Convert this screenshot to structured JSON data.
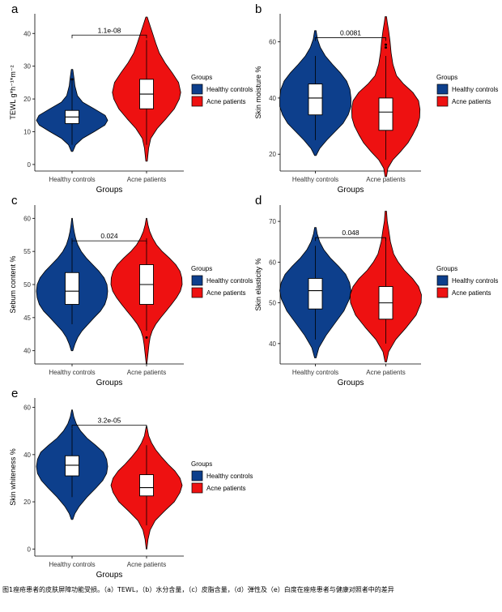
{
  "caption": "图1痤疮患者的皮肤屏障功能受损。（a）TEWL，（b）水分含量，（c）皮脂含量，（d）弹性及（e）白度在痤疮患者与健康对照者中的差异",
  "colors": {
    "healthy": "#0d3f8c",
    "acne": "#ee1111",
    "axis": "#000000"
  },
  "legend": {
    "title": "Groups",
    "items": [
      "Healthy controls",
      "Acne patients"
    ]
  },
  "chart_data": [
    {
      "type": "violin",
      "panel_letter": "a",
      "ylabel": "TEWL g*h⁻¹*m⁻²",
      "xlabel": "Groups",
      "categories": [
        "Healthy controls",
        "Acne patients"
      ],
      "ylim": [
        -2,
        46
      ],
      "yticks": [
        0,
        10,
        20,
        30,
        40
      ],
      "series": [
        {
          "name": "Healthy controls",
          "min": 4,
          "max": 29,
          "q1": 12.5,
          "median": 14.5,
          "q3": 16.5,
          "whisker_low": 6,
          "whisker_high": 26,
          "density": [
            [
              4,
              0.02
            ],
            [
              6,
              0.1
            ],
            [
              8,
              0.3
            ],
            [
              10,
              0.62
            ],
            [
              12,
              0.92
            ],
            [
              13.5,
              1.0
            ],
            [
              15,
              0.93
            ],
            [
              17,
              0.62
            ],
            [
              19,
              0.3
            ],
            [
              21,
              0.15
            ],
            [
              24,
              0.08
            ],
            [
              26,
              0.06
            ],
            [
              29,
              0.02
            ]
          ],
          "outliers": [
            26
          ]
        },
        {
          "name": "Acne patients",
          "min": 1,
          "max": 45,
          "q1": 17,
          "median": 21.5,
          "q3": 26,
          "whisker_low": 6,
          "whisker_high": 38,
          "density": [
            [
              1,
              0.02
            ],
            [
              5,
              0.06
            ],
            [
              8,
              0.12
            ],
            [
              11,
              0.3
            ],
            [
              14,
              0.55
            ],
            [
              17,
              0.78
            ],
            [
              20,
              0.92
            ],
            [
              22,
              0.96
            ],
            [
              25,
              0.9
            ],
            [
              28,
              0.72
            ],
            [
              31,
              0.52
            ],
            [
              34,
              0.36
            ],
            [
              37,
              0.26
            ],
            [
              40,
              0.17
            ],
            [
              43,
              0.08
            ],
            [
              45,
              0.02
            ]
          ],
          "outliers": []
        }
      ],
      "comparison": {
        "p_value": "1.1e-08",
        "y": 39.5
      }
    },
    {
      "type": "violin",
      "panel_letter": "b",
      "ylabel": "Skin moisture %",
      "xlabel": "Groups",
      "categories": [
        "Healthy controls",
        "Acne patients"
      ],
      "ylim": [
        14,
        70
      ],
      "yticks": [
        20,
        40,
        60
      ],
      "series": [
        {
          "name": "Healthy controls",
          "min": 19.5,
          "max": 64,
          "q1": 34,
          "median": 40,
          "q3": 45,
          "whisker_low": 25,
          "whisker_high": 55,
          "density": [
            [
              19.5,
              0.02
            ],
            [
              22,
              0.12
            ],
            [
              25,
              0.32
            ],
            [
              28,
              0.55
            ],
            [
              31,
              0.78
            ],
            [
              34,
              0.92
            ],
            [
              37,
              1.0
            ],
            [
              40,
              1.0
            ],
            [
              43,
              0.97
            ],
            [
              46,
              0.88
            ],
            [
              49,
              0.7
            ],
            [
              52,
              0.48
            ],
            [
              55,
              0.28
            ],
            [
              58,
              0.14
            ],
            [
              61,
              0.06
            ],
            [
              64,
              0.02
            ]
          ],
          "outliers": []
        },
        {
          "name": "Acne patients",
          "min": 12,
          "max": 69,
          "q1": 28.5,
          "median": 35,
          "q3": 40,
          "whisker_low": 18,
          "whisker_high": 55,
          "density": [
            [
              12,
              0.02
            ],
            [
              15,
              0.06
            ],
            [
              18,
              0.2
            ],
            [
              21,
              0.42
            ],
            [
              24,
              0.62
            ],
            [
              27,
              0.76
            ],
            [
              30,
              0.88
            ],
            [
              33,
              0.95
            ],
            [
              36,
              0.96
            ],
            [
              39,
              0.92
            ],
            [
              42,
              0.76
            ],
            [
              45,
              0.5
            ],
            [
              48,
              0.3
            ],
            [
              52,
              0.2
            ],
            [
              56,
              0.15
            ],
            [
              60,
              0.12
            ],
            [
              64,
              0.08
            ],
            [
              67,
              0.04
            ],
            [
              69,
              0.02
            ]
          ],
          "outliers": [
            58,
            59
          ]
        }
      ],
      "comparison": {
        "p_value": "0.0081",
        "y": 61.5
      }
    },
    {
      "type": "violin",
      "panel_letter": "c",
      "ylabel": "Sebum content %",
      "xlabel": "Groups",
      "categories": [
        "Healthy controls",
        "Acne patients"
      ],
      "ylim": [
        38,
        62
      ],
      "yticks": [
        40,
        45,
        50,
        55,
        60
      ],
      "series": [
        {
          "name": "Healthy controls",
          "min": 40,
          "max": 60,
          "q1": 47,
          "median": 49,
          "q3": 51.8,
          "whisker_low": 44,
          "whisker_high": 57,
          "density": [
            [
              40,
              0.02
            ],
            [
              41,
              0.08
            ],
            [
              42,
              0.16
            ],
            [
              43,
              0.28
            ],
            [
              44,
              0.45
            ],
            [
              45,
              0.62
            ],
            [
              46,
              0.8
            ],
            [
              47,
              0.92
            ],
            [
              48,
              0.98
            ],
            [
              49,
              1.0
            ],
            [
              50,
              0.98
            ],
            [
              51,
              0.9
            ],
            [
              52,
              0.76
            ],
            [
              53,
              0.58
            ],
            [
              54,
              0.4
            ],
            [
              55,
              0.26
            ],
            [
              56,
              0.16
            ],
            [
              57,
              0.1
            ],
            [
              58,
              0.06
            ],
            [
              59,
              0.03
            ],
            [
              60,
              0.01
            ]
          ],
          "outliers": []
        },
        {
          "name": "Acne patients",
          "min": 38,
          "max": 60,
          "q1": 47,
          "median": 50,
          "q3": 53,
          "whisker_low": 43,
          "whisker_high": 57,
          "density": [
            [
              38,
              0.01
            ],
            [
              39,
              0.03
            ],
            [
              40,
              0.05
            ],
            [
              41,
              0.07
            ],
            [
              42,
              0.1
            ],
            [
              43,
              0.16
            ],
            [
              44,
              0.26
            ],
            [
              45,
              0.4
            ],
            [
              46,
              0.55
            ],
            [
              47,
              0.7
            ],
            [
              48,
              0.84
            ],
            [
              49,
              0.95
            ],
            [
              50,
              1.0
            ],
            [
              51,
              0.99
            ],
            [
              52,
              0.94
            ],
            [
              53,
              0.82
            ],
            [
              54,
              0.64
            ],
            [
              55,
              0.44
            ],
            [
              56,
              0.28
            ],
            [
              57,
              0.17
            ],
            [
              58,
              0.09
            ],
            [
              59,
              0.04
            ],
            [
              60,
              0.01
            ]
          ],
          "outliers": [
            42
          ]
        }
      ],
      "comparison": {
        "p_value": "0.024",
        "y": 56.6
      }
    },
    {
      "type": "violin",
      "panel_letter": "d",
      "ylabel": "Skin elasticity %",
      "xlabel": "Groups",
      "categories": [
        "Healthy controls",
        "Acne patients"
      ],
      "ylim": [
        35,
        74
      ],
      "yticks": [
        40,
        50,
        60,
        70
      ],
      "series": [
        {
          "name": "Healthy controls",
          "min": 36.5,
          "max": 68.5,
          "q1": 48.5,
          "median": 53,
          "q3": 56,
          "whisker_low": 41,
          "whisker_high": 64,
          "density": [
            [
              36.5,
              0.02
            ],
            [
              39,
              0.1
            ],
            [
              42,
              0.3
            ],
            [
              45,
              0.55
            ],
            [
              48,
              0.8
            ],
            [
              51,
              0.96
            ],
            [
              53,
              1.0
            ],
            [
              55,
              0.96
            ],
            [
              57,
              0.85
            ],
            [
              59,
              0.65
            ],
            [
              61,
              0.42
            ],
            [
              63,
              0.24
            ],
            [
              65,
              0.12
            ],
            [
              67,
              0.05
            ],
            [
              68.5,
              0.02
            ]
          ],
          "outliers": []
        },
        {
          "name": "Acne patients",
          "min": 35.5,
          "max": 72.5,
          "q1": 46,
          "median": 50,
          "q3": 54,
          "whisker_low": 40,
          "whisker_high": 66,
          "density": [
            [
              35.5,
              0.02
            ],
            [
              38,
              0.08
            ],
            [
              41,
              0.28
            ],
            [
              44,
              0.58
            ],
            [
              47,
              0.85
            ],
            [
              50,
              0.99
            ],
            [
              52,
              1.0
            ],
            [
              54,
              0.92
            ],
            [
              56,
              0.75
            ],
            [
              58,
              0.52
            ],
            [
              60,
              0.35
            ],
            [
              62,
              0.22
            ],
            [
              65,
              0.13
            ],
            [
              68,
              0.08
            ],
            [
              70,
              0.04
            ],
            [
              72.5,
              0.02
            ]
          ],
          "outliers": []
        }
      ],
      "comparison": {
        "p_value": "0.048",
        "y": 66
      }
    },
    {
      "type": "violin",
      "panel_letter": "e",
      "ylabel": "Skin whiteness %",
      "xlabel": "Groups",
      "categories": [
        "Healthy controls",
        "Acne patients"
      ],
      "ylim": [
        -3,
        64
      ],
      "yticks": [
        0,
        20,
        40,
        60
      ],
      "series": [
        {
          "name": "Healthy controls",
          "min": 12.5,
          "max": 59,
          "q1": 31,
          "median": 35.5,
          "q3": 39.5,
          "whisker_low": 22,
          "whisker_high": 51,
          "density": [
            [
              12.5,
              0.02
            ],
            [
              15,
              0.08
            ],
            [
              18,
              0.2
            ],
            [
              22,
              0.42
            ],
            [
              26,
              0.68
            ],
            [
              29,
              0.86
            ],
            [
              32,
              0.97
            ],
            [
              35,
              1.0
            ],
            [
              38,
              0.97
            ],
            [
              41,
              0.88
            ],
            [
              44,
              0.66
            ],
            [
              47,
              0.42
            ],
            [
              50,
              0.24
            ],
            [
              53,
              0.12
            ],
            [
              56,
              0.05
            ],
            [
              59,
              0.01
            ]
          ],
          "outliers": []
        },
        {
          "name": "Acne patients",
          "min": 0,
          "max": 52,
          "q1": 22.5,
          "median": 26,
          "q3": 31.5,
          "whisker_low": 10,
          "whisker_high": 44,
          "density": [
            [
              0,
              0.01
            ],
            [
              4,
              0.04
            ],
            [
              8,
              0.1
            ],
            [
              12,
              0.24
            ],
            [
              16,
              0.5
            ],
            [
              20,
              0.78
            ],
            [
              24,
              0.94
            ],
            [
              27,
              1.0
            ],
            [
              30,
              0.94
            ],
            [
              33,
              0.8
            ],
            [
              36,
              0.6
            ],
            [
              39,
              0.42
            ],
            [
              42,
              0.26
            ],
            [
              45,
              0.14
            ],
            [
              48,
              0.06
            ],
            [
              52,
              0.01
            ]
          ],
          "outliers": []
        }
      ],
      "comparison": {
        "p_value": "3.2e-05",
        "y": 52.5
      }
    }
  ]
}
